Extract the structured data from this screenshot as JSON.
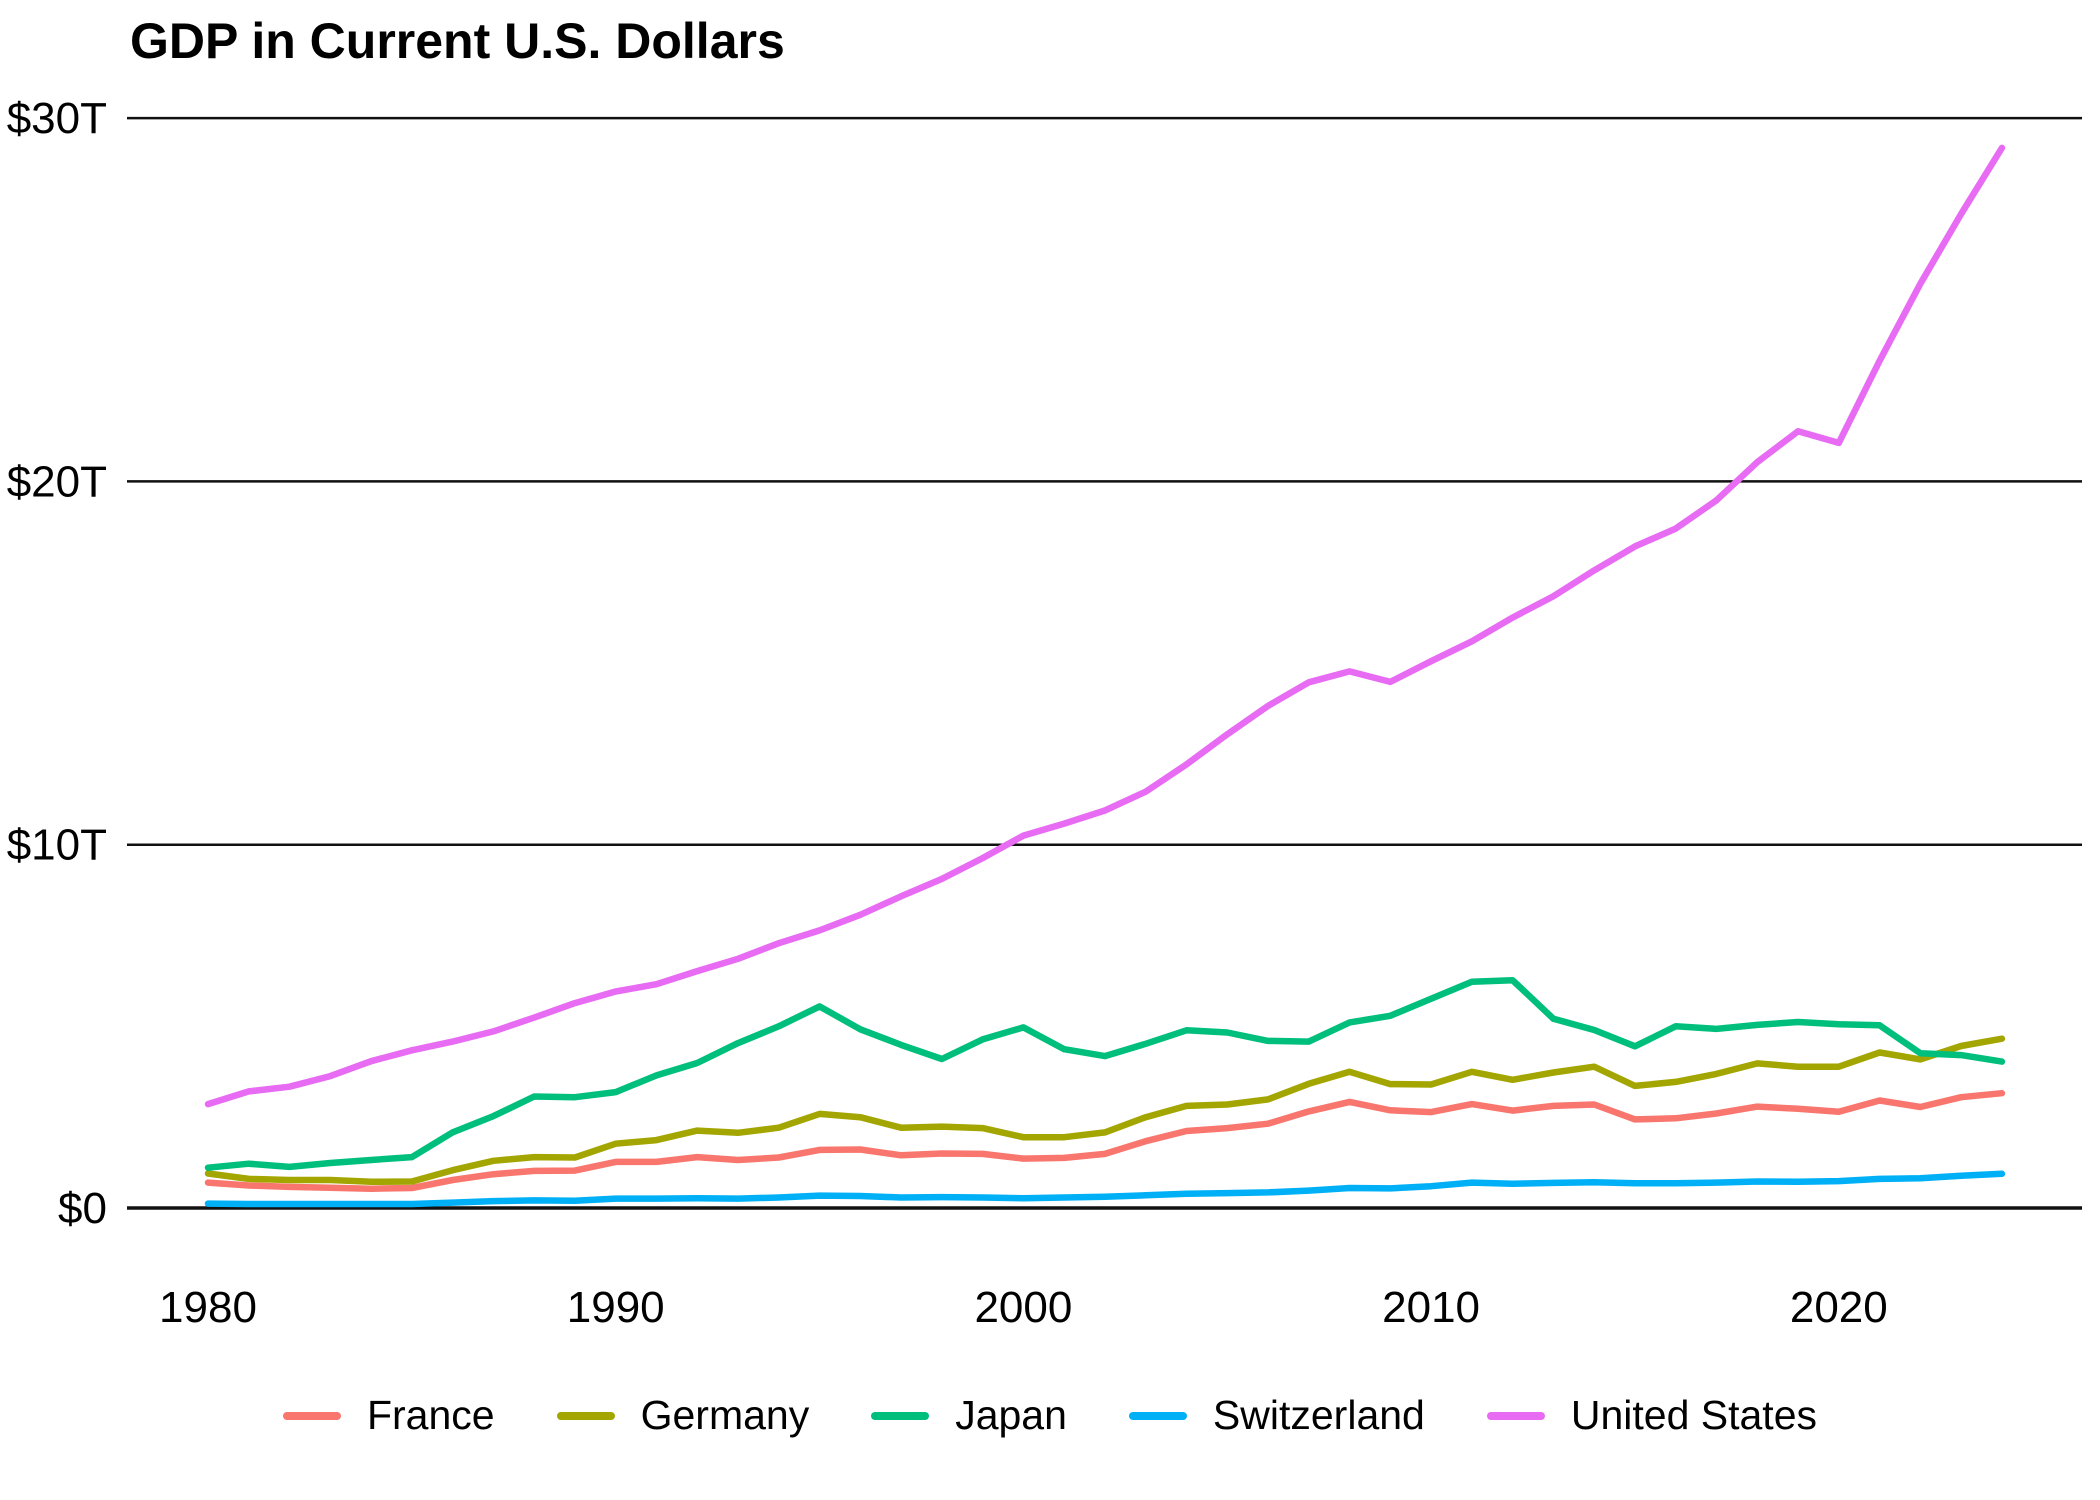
{
  "title": "GDP in Current U.S. Dollars",
  "chart_data": {
    "type": "line",
    "title": "GDP in Current U.S. Dollars",
    "unit": "trillions of current U.S. dollars",
    "grid": "horizontal-only",
    "legend_position": "bottom-center",
    "xlim": [
      1980,
      2024
    ],
    "ylim": [
      0,
      30
    ],
    "x_ticks": [
      1980,
      1990,
      2000,
      2010,
      2020
    ],
    "x_tick_labels": [
      "1980",
      "1990",
      "2000",
      "2010",
      "2020"
    ],
    "y_ticks": [
      0,
      10,
      20,
      30
    ],
    "y_tick_labels": [
      "$0",
      "$10T",
      "$20T",
      "$30T"
    ],
    "x": [
      1980,
      1981,
      1982,
      1983,
      1984,
      1985,
      1986,
      1987,
      1988,
      1989,
      1990,
      1991,
      1992,
      1993,
      1994,
      1995,
      1996,
      1997,
      1998,
      1999,
      2000,
      2001,
      2002,
      2003,
      2004,
      2005,
      2006,
      2007,
      2008,
      2009,
      2010,
      2011,
      2012,
      2013,
      2014,
      2015,
      2016,
      2017,
      2018,
      2019,
      2020,
      2021,
      2022,
      2023,
      2024
    ],
    "series": [
      {
        "name": "France",
        "color": "#F8766D",
        "values": [
          0.7,
          0.62,
          0.58,
          0.56,
          0.53,
          0.55,
          0.77,
          0.93,
          1.02,
          1.03,
          1.27,
          1.27,
          1.4,
          1.32,
          1.39,
          1.6,
          1.61,
          1.45,
          1.5,
          1.49,
          1.36,
          1.38,
          1.49,
          1.84,
          2.12,
          2.2,
          2.32,
          2.66,
          2.92,
          2.69,
          2.64,
          2.86,
          2.68,
          2.81,
          2.85,
          2.44,
          2.47,
          2.6,
          2.79,
          2.73,
          2.65,
          2.96,
          2.78,
          3.05,
          3.16
        ]
      },
      {
        "name": "Germany",
        "color": "#A3A500",
        "values": [
          0.95,
          0.8,
          0.77,
          0.77,
          0.72,
          0.73,
          1.04,
          1.3,
          1.4,
          1.39,
          1.77,
          1.87,
          2.13,
          2.07,
          2.21,
          2.59,
          2.5,
          2.21,
          2.24,
          2.2,
          1.95,
          1.95,
          2.08,
          2.5,
          2.81,
          2.85,
          2.99,
          3.42,
          3.75,
          3.41,
          3.4,
          3.75,
          3.53,
          3.73,
          3.89,
          3.36,
          3.47,
          3.69,
          3.98,
          3.89,
          3.89,
          4.28,
          4.09,
          4.46,
          4.66
        ]
      },
      {
        "name": "Japan",
        "color": "#00BF7D",
        "values": [
          1.11,
          1.22,
          1.13,
          1.24,
          1.32,
          1.4,
          2.08,
          2.53,
          3.07,
          3.05,
          3.19,
          3.65,
          3.99,
          4.54,
          5.0,
          5.55,
          4.92,
          4.49,
          4.1,
          4.64,
          4.97,
          4.37,
          4.18,
          4.52,
          4.89,
          4.83,
          4.6,
          4.58,
          5.11,
          5.29,
          5.76,
          6.23,
          6.27,
          5.21,
          4.9,
          4.45,
          5.0,
          4.93,
          5.04,
          5.12,
          5.06,
          5.03,
          4.26,
          4.21,
          4.03
        ]
      },
      {
        "name": "Switzerland",
        "color": "#00B0F6",
        "values": [
          0.12,
          0.11,
          0.11,
          0.11,
          0.11,
          0.11,
          0.15,
          0.19,
          0.21,
          0.2,
          0.26,
          0.26,
          0.27,
          0.26,
          0.29,
          0.34,
          0.33,
          0.29,
          0.3,
          0.29,
          0.27,
          0.29,
          0.31,
          0.35,
          0.39,
          0.41,
          0.43,
          0.48,
          0.55,
          0.54,
          0.6,
          0.7,
          0.67,
          0.69,
          0.71,
          0.68,
          0.68,
          0.7,
          0.73,
          0.72,
          0.74,
          0.8,
          0.82,
          0.89,
          0.94
        ]
      },
      {
        "name": "United States",
        "color": "#E76BF3",
        "values": [
          2.86,
          3.21,
          3.34,
          3.63,
          4.04,
          4.34,
          4.58,
          4.86,
          5.24,
          5.64,
          5.96,
          6.16,
          6.52,
          6.86,
          7.29,
          7.64,
          8.07,
          8.58,
          9.06,
          9.63,
          10.25,
          10.58,
          10.94,
          11.46,
          12.21,
          13.04,
          13.82,
          14.47,
          14.77,
          14.48,
          15.05,
          15.6,
          16.25,
          16.84,
          17.55,
          18.21,
          18.7,
          19.48,
          20.53,
          21.38,
          21.06,
          23.32,
          25.44,
          27.36,
          29.18
        ]
      }
    ]
  }
}
